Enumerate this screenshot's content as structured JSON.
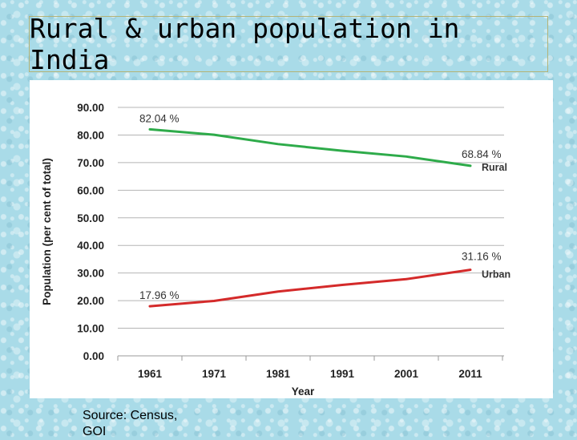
{
  "page": {
    "title": "Rural & urban population in India",
    "source_lines": [
      "Source: Census,",
      "GOI"
    ]
  },
  "chart_data": {
    "type": "line",
    "title": "",
    "xlabel": "Year",
    "ylabel": "Population (per cent of total)",
    "x": [
      1961,
      1971,
      1981,
      1991,
      2001,
      2011
    ],
    "x_tick_labels": [
      "1961",
      "1971",
      "1981",
      "1991",
      "2001",
      "2011"
    ],
    "ylim": [
      0,
      90
    ],
    "y_ticks": [
      0,
      10,
      20,
      30,
      40,
      50,
      60,
      70,
      80,
      90
    ],
    "y_tick_labels": [
      "0.00",
      "10.00",
      "20.00",
      "30.00",
      "40.00",
      "50.00",
      "60.00",
      "70.00",
      "80.00",
      "90.00"
    ],
    "grid": true,
    "series": [
      {
        "name": "Rural",
        "color": "#2eab4a",
        "values": [
          82.04,
          80.1,
          76.7,
          74.3,
          72.2,
          68.84
        ],
        "start_label": "82.04 %",
        "end_label": "68.84 %"
      },
      {
        "name": "Urban",
        "color": "#d42a2a",
        "values": [
          17.96,
          19.9,
          23.3,
          25.7,
          27.8,
          31.16
        ],
        "start_label": "17.96 %",
        "end_label": "31.16 %"
      }
    ]
  }
}
